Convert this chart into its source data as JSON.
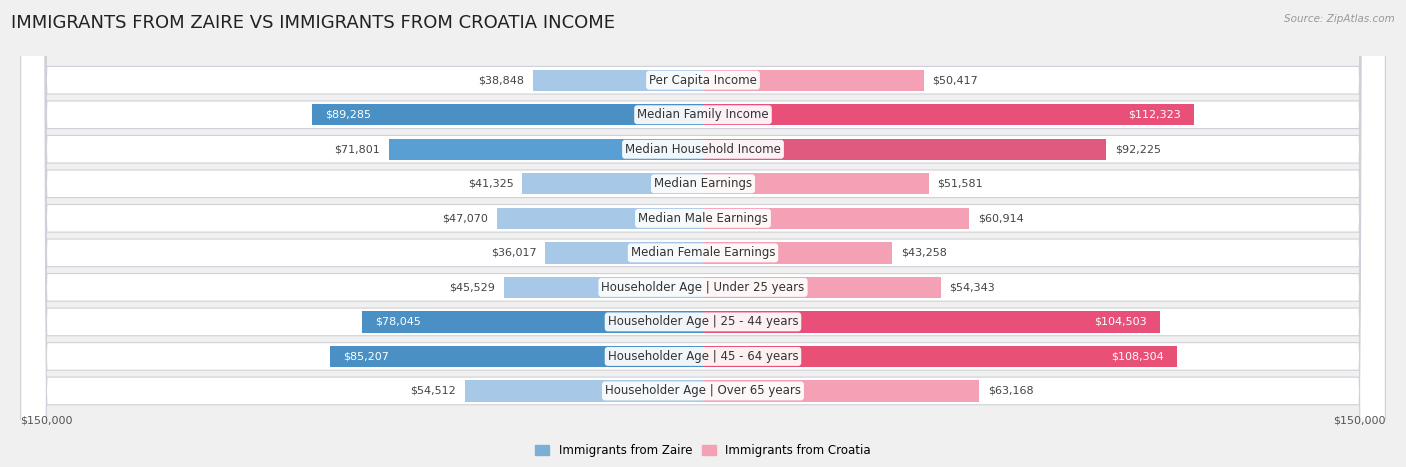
{
  "title": "IMMIGRANTS FROM ZAIRE VS IMMIGRANTS FROM CROATIA INCOME",
  "source": "Source: ZipAtlas.com",
  "categories": [
    "Per Capita Income",
    "Median Family Income",
    "Median Household Income",
    "Median Earnings",
    "Median Male Earnings",
    "Median Female Earnings",
    "Householder Age | Under 25 years",
    "Householder Age | 25 - 44 years",
    "Householder Age | 45 - 64 years",
    "Householder Age | Over 65 years"
  ],
  "zaire_values": [
    38848,
    89285,
    71801,
    41325,
    47070,
    36017,
    45529,
    78045,
    85207,
    54512
  ],
  "croatia_values": [
    50417,
    112323,
    92225,
    51581,
    60914,
    43258,
    54343,
    104503,
    108304,
    63168
  ],
  "zaire_colors": [
    "#a8c8e8",
    "#4a90c4",
    "#5a9fd4",
    "#a8c8e8",
    "#a8c8e8",
    "#a8c8e8",
    "#a8c8e8",
    "#4a90c4",
    "#4a90c4",
    "#a8c8e8"
  ],
  "croatia_colors": [
    "#f4a0b5",
    "#e8507a",
    "#e05a80",
    "#f4a0b5",
    "#f4a0b5",
    "#f4a0b5",
    "#f4a0b5",
    "#e8507a",
    "#e85075",
    "#f4a0b5"
  ],
  "zaire_label": "Immigrants from Zaire",
  "croatia_label": "Immigrants from Croatia",
  "zaire_legend_color": "#7bafd4",
  "croatia_legend_color": "#f4a0b5",
  "background_color": "#f0f0f0",
  "row_bg_color": "#ffffff",
  "row_border_color": "#d0d0d8",
  "max_val": 150000,
  "title_fontsize": 13,
  "label_fontsize": 8.5,
  "value_fontsize": 8,
  "axis_label": "$150,000",
  "zaire_threshold": 75000,
  "croatia_threshold": 100000
}
